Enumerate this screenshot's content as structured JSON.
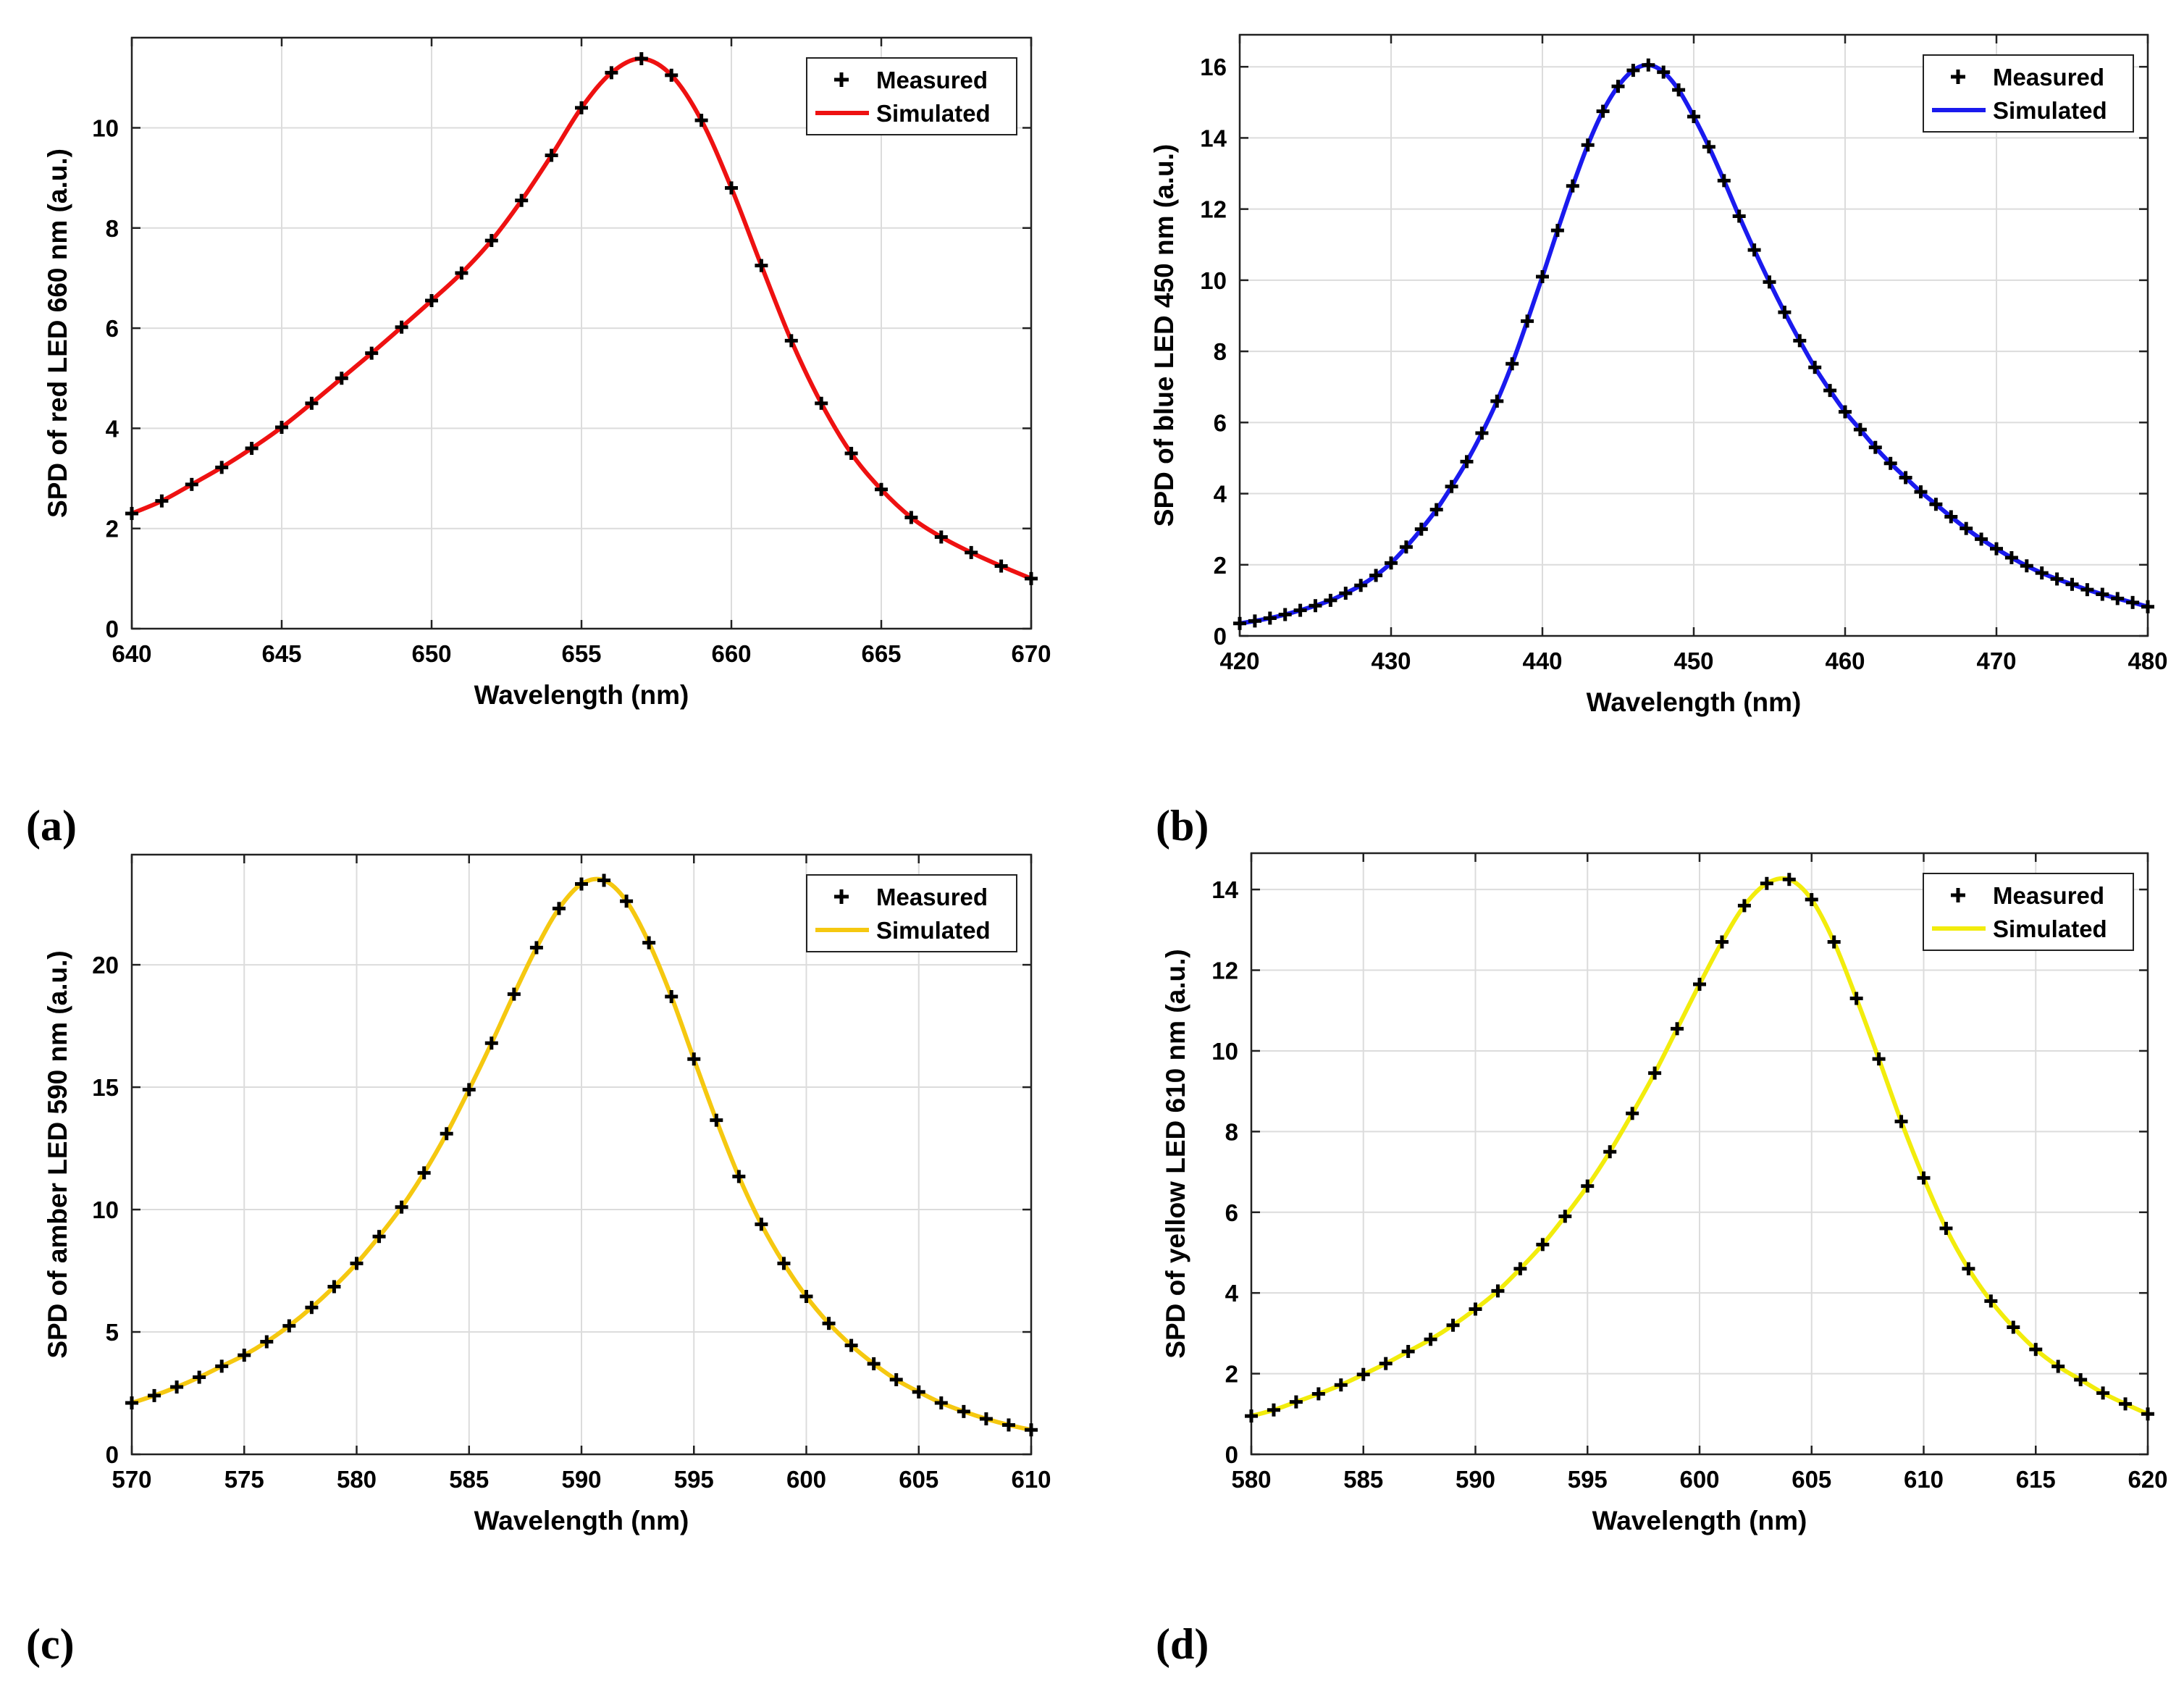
{
  "chart_data": [
    {
      "type": "line",
      "panel_label": "(a)",
      "xlabel": "Wavelength (nm)",
      "ylabel": "SPD of  red LED  660 nm (a.u.)",
      "xlim": [
        640,
        670
      ],
      "ylim": [
        0,
        11.8
      ],
      "xticks": [
        640,
        645,
        650,
        655,
        660,
        665,
        670
      ],
      "yticks": [
        0,
        2,
        4,
        6,
        8,
        10
      ],
      "grid": true,
      "legend_position": "top-right",
      "series": [
        {
          "name": "Measured",
          "style": "plus-markers",
          "color": "#000000",
          "x": [
            640,
            641,
            642,
            643,
            644,
            645,
            646,
            647,
            648,
            649,
            650,
            651,
            652,
            653,
            654,
            655,
            656,
            657,
            658,
            659,
            660,
            661,
            662,
            663,
            664,
            665,
            666,
            667,
            668,
            669,
            670
          ],
          "y": [
            2.3,
            2.55,
            2.88,
            3.22,
            3.6,
            4.02,
            4.5,
            5.0,
            5.5,
            6.02,
            6.55,
            7.1,
            7.75,
            8.55,
            9.45,
            10.4,
            11.1,
            11.38,
            11.05,
            10.15,
            8.8,
            7.25,
            5.75,
            4.5,
            3.5,
            2.78,
            2.22,
            1.83,
            1.52,
            1.25,
            1.0
          ]
        },
        {
          "name": "Simulated",
          "style": "line",
          "color": "#ee1111",
          "x": [
            640,
            641,
            642,
            643,
            644,
            645,
            646,
            647,
            648,
            649,
            650,
            651,
            652,
            653,
            654,
            655,
            656,
            657,
            658,
            659,
            660,
            661,
            662,
            663,
            664,
            665,
            666,
            667,
            668,
            669,
            670
          ],
          "y": [
            2.3,
            2.55,
            2.88,
            3.22,
            3.6,
            4.02,
            4.5,
            5.0,
            5.5,
            6.02,
            6.55,
            7.1,
            7.75,
            8.55,
            9.45,
            10.4,
            11.1,
            11.38,
            11.05,
            10.15,
            8.8,
            7.25,
            5.75,
            4.5,
            3.5,
            2.78,
            2.22,
            1.83,
            1.52,
            1.25,
            1.0
          ]
        }
      ]
    },
    {
      "type": "line",
      "panel_label": "(b)",
      "xlabel": "Wavelength (nm)",
      "ylabel": "SPD of  blue LED  450 nm (a.u.)",
      "xlim": [
        420,
        480
      ],
      "ylim": [
        0,
        16.9
      ],
      "xticks": [
        420,
        430,
        440,
        450,
        460,
        470,
        480
      ],
      "yticks": [
        0,
        2,
        4,
        6,
        8,
        10,
        12,
        14,
        16
      ],
      "grid": true,
      "legend_position": "top-right",
      "series": [
        {
          "name": "Measured",
          "style": "plus-markers",
          "color": "#000000",
          "x": [
            420,
            421,
            422,
            423,
            424,
            425,
            426,
            427,
            428,
            429,
            430,
            431,
            432,
            433,
            434,
            435,
            436,
            437,
            438,
            439,
            440,
            441,
            442,
            443,
            444,
            445,
            446,
            447,
            448,
            449,
            450,
            451,
            452,
            453,
            454,
            455,
            456,
            457,
            458,
            459,
            460,
            461,
            462,
            463,
            464,
            465,
            466,
            467,
            468,
            469,
            470,
            471,
            472,
            473,
            474,
            475,
            476,
            477,
            478,
            479,
            480
          ],
          "y": [
            0.35,
            0.42,
            0.5,
            0.6,
            0.72,
            0.85,
            1.0,
            1.2,
            1.42,
            1.7,
            2.05,
            2.5,
            3.0,
            3.55,
            4.2,
            4.9,
            5.7,
            6.6,
            7.65,
            8.85,
            10.1,
            11.4,
            12.65,
            13.8,
            14.75,
            15.45,
            15.9,
            16.05,
            15.85,
            15.35,
            14.6,
            13.75,
            12.8,
            11.8,
            10.85,
            9.95,
            9.1,
            8.3,
            7.55,
            6.9,
            6.3,
            5.8,
            5.3,
            4.85,
            4.45,
            4.05,
            3.7,
            3.35,
            3.02,
            2.72,
            2.45,
            2.2,
            1.97,
            1.77,
            1.6,
            1.45,
            1.3,
            1.17,
            1.05,
            0.94,
            0.82
          ]
        },
        {
          "name": "Simulated",
          "style": "line",
          "color": "#1a1aee",
          "x": [
            420,
            421,
            422,
            423,
            424,
            425,
            426,
            427,
            428,
            429,
            430,
            431,
            432,
            433,
            434,
            435,
            436,
            437,
            438,
            439,
            440,
            441,
            442,
            443,
            444,
            445,
            446,
            447,
            448,
            449,
            450,
            451,
            452,
            453,
            454,
            455,
            456,
            457,
            458,
            459,
            460,
            461,
            462,
            463,
            464,
            465,
            466,
            467,
            468,
            469,
            470,
            471,
            472,
            473,
            474,
            475,
            476,
            477,
            478,
            479,
            480
          ],
          "y": [
            0.35,
            0.42,
            0.5,
            0.6,
            0.72,
            0.85,
            1.0,
            1.2,
            1.42,
            1.7,
            2.05,
            2.5,
            3.0,
            3.55,
            4.2,
            4.9,
            5.7,
            6.6,
            7.65,
            8.85,
            10.1,
            11.4,
            12.65,
            13.8,
            14.75,
            15.45,
            15.9,
            16.05,
            15.85,
            15.35,
            14.6,
            13.75,
            12.8,
            11.8,
            10.85,
            9.95,
            9.1,
            8.3,
            7.55,
            6.9,
            6.3,
            5.8,
            5.3,
            4.85,
            4.45,
            4.05,
            3.7,
            3.35,
            3.02,
            2.72,
            2.45,
            2.2,
            1.97,
            1.77,
            1.6,
            1.45,
            1.3,
            1.17,
            1.05,
            0.94,
            0.82
          ]
        }
      ]
    },
    {
      "type": "line",
      "panel_label": "(c)",
      "xlabel": "Wavelength (nm)",
      "ylabel": "SPD of amber LED  590 nm (a.u.)",
      "xlim": [
        570,
        610
      ],
      "ylim": [
        0,
        24.5
      ],
      "xticks": [
        570,
        575,
        580,
        585,
        590,
        595,
        600,
        605,
        610
      ],
      "yticks": [
        0,
        5,
        10,
        15,
        20
      ],
      "grid": true,
      "legend_position": "top-right",
      "series": [
        {
          "name": "Measured",
          "style": "plus-markers",
          "color": "#000000",
          "x": [
            570,
            571,
            572,
            573,
            574,
            575,
            576,
            577,
            578,
            579,
            580,
            581,
            582,
            583,
            584,
            585,
            586,
            587,
            588,
            589,
            590,
            591,
            592,
            593,
            594,
            595,
            596,
            597,
            598,
            599,
            600,
            601,
            602,
            603,
            604,
            605,
            606,
            607,
            608,
            609,
            610
          ],
          "y": [
            2.1,
            2.4,
            2.75,
            3.15,
            3.6,
            4.05,
            4.6,
            5.25,
            6.0,
            6.85,
            7.8,
            8.9,
            10.1,
            11.5,
            13.1,
            14.9,
            16.8,
            18.8,
            20.7,
            22.3,
            23.3,
            23.45,
            22.6,
            20.9,
            18.7,
            16.15,
            13.65,
            11.35,
            9.4,
            7.8,
            6.45,
            5.35,
            4.45,
            3.7,
            3.05,
            2.55,
            2.1,
            1.75,
            1.45,
            1.2,
            1.0
          ]
        },
        {
          "name": "Simulated",
          "style": "line",
          "color": "#f5c810",
          "x": [
            570,
            571,
            572,
            573,
            574,
            575,
            576,
            577,
            578,
            579,
            580,
            581,
            582,
            583,
            584,
            585,
            586,
            587,
            588,
            589,
            590,
            591,
            592,
            593,
            594,
            595,
            596,
            597,
            598,
            599,
            600,
            601,
            602,
            603,
            604,
            605,
            606,
            607,
            608,
            609,
            610
          ],
          "y": [
            2.1,
            2.4,
            2.75,
            3.15,
            3.6,
            4.05,
            4.6,
            5.25,
            6.0,
            6.85,
            7.8,
            8.9,
            10.1,
            11.5,
            13.1,
            14.9,
            16.8,
            18.8,
            20.7,
            22.3,
            23.3,
            23.45,
            22.6,
            20.9,
            18.7,
            16.15,
            13.65,
            11.35,
            9.4,
            7.8,
            6.45,
            5.35,
            4.45,
            3.7,
            3.05,
            2.55,
            2.1,
            1.75,
            1.45,
            1.2,
            1.0
          ]
        }
      ]
    },
    {
      "type": "line",
      "panel_label": "(d)",
      "xlabel": "Wavelength (nm)",
      "ylabel": "SPD of yellow LED  610 nm (a.u.)",
      "xlim": [
        580,
        620
      ],
      "ylim": [
        0,
        14.9
      ],
      "xticks": [
        580,
        585,
        590,
        595,
        600,
        605,
        610,
        615,
        620
      ],
      "yticks": [
        0,
        2,
        4,
        6,
        8,
        10,
        12,
        14
      ],
      "grid": true,
      "legend_position": "top-right",
      "series": [
        {
          "name": "Measured",
          "style": "plus-markers",
          "color": "#000000",
          "x": [
            580,
            581,
            582,
            583,
            584,
            585,
            586,
            587,
            588,
            589,
            590,
            591,
            592,
            593,
            594,
            595,
            596,
            597,
            598,
            599,
            600,
            601,
            602,
            603,
            604,
            605,
            606,
            607,
            608,
            609,
            610,
            611,
            612,
            613,
            614,
            615,
            616,
            617,
            618,
            619,
            620
          ],
          "y": [
            0.95,
            1.1,
            1.3,
            1.5,
            1.72,
            1.98,
            2.25,
            2.55,
            2.85,
            3.2,
            3.6,
            4.05,
            4.6,
            5.2,
            5.9,
            6.65,
            7.5,
            8.45,
            9.45,
            10.55,
            11.65,
            12.7,
            13.6,
            14.15,
            14.25,
            13.75,
            12.7,
            11.3,
            9.8,
            8.25,
            6.85,
            5.6,
            4.6,
            3.8,
            3.15,
            2.6,
            2.18,
            1.85,
            1.52,
            1.25,
            1.0
          ]
        },
        {
          "name": "Simulated",
          "style": "line",
          "color": "#f2ec0c",
          "x": [
            580,
            581,
            582,
            583,
            584,
            585,
            586,
            587,
            588,
            589,
            590,
            591,
            592,
            593,
            594,
            595,
            596,
            597,
            598,
            599,
            600,
            601,
            602,
            603,
            604,
            605,
            606,
            607,
            608,
            609,
            610,
            611,
            612,
            613,
            614,
            615,
            616,
            617,
            618,
            619,
            620
          ],
          "y": [
            0.95,
            1.1,
            1.3,
            1.5,
            1.72,
            1.98,
            2.25,
            2.55,
            2.85,
            3.2,
            3.6,
            4.05,
            4.6,
            5.2,
            5.9,
            6.65,
            7.5,
            8.45,
            9.45,
            10.55,
            11.65,
            12.7,
            13.6,
            14.15,
            14.25,
            13.75,
            12.7,
            11.3,
            9.8,
            8.25,
            6.85,
            5.6,
            4.6,
            3.8,
            3.15,
            2.6,
            2.18,
            1.85,
            1.52,
            1.25,
            1.0
          ]
        }
      ]
    }
  ]
}
